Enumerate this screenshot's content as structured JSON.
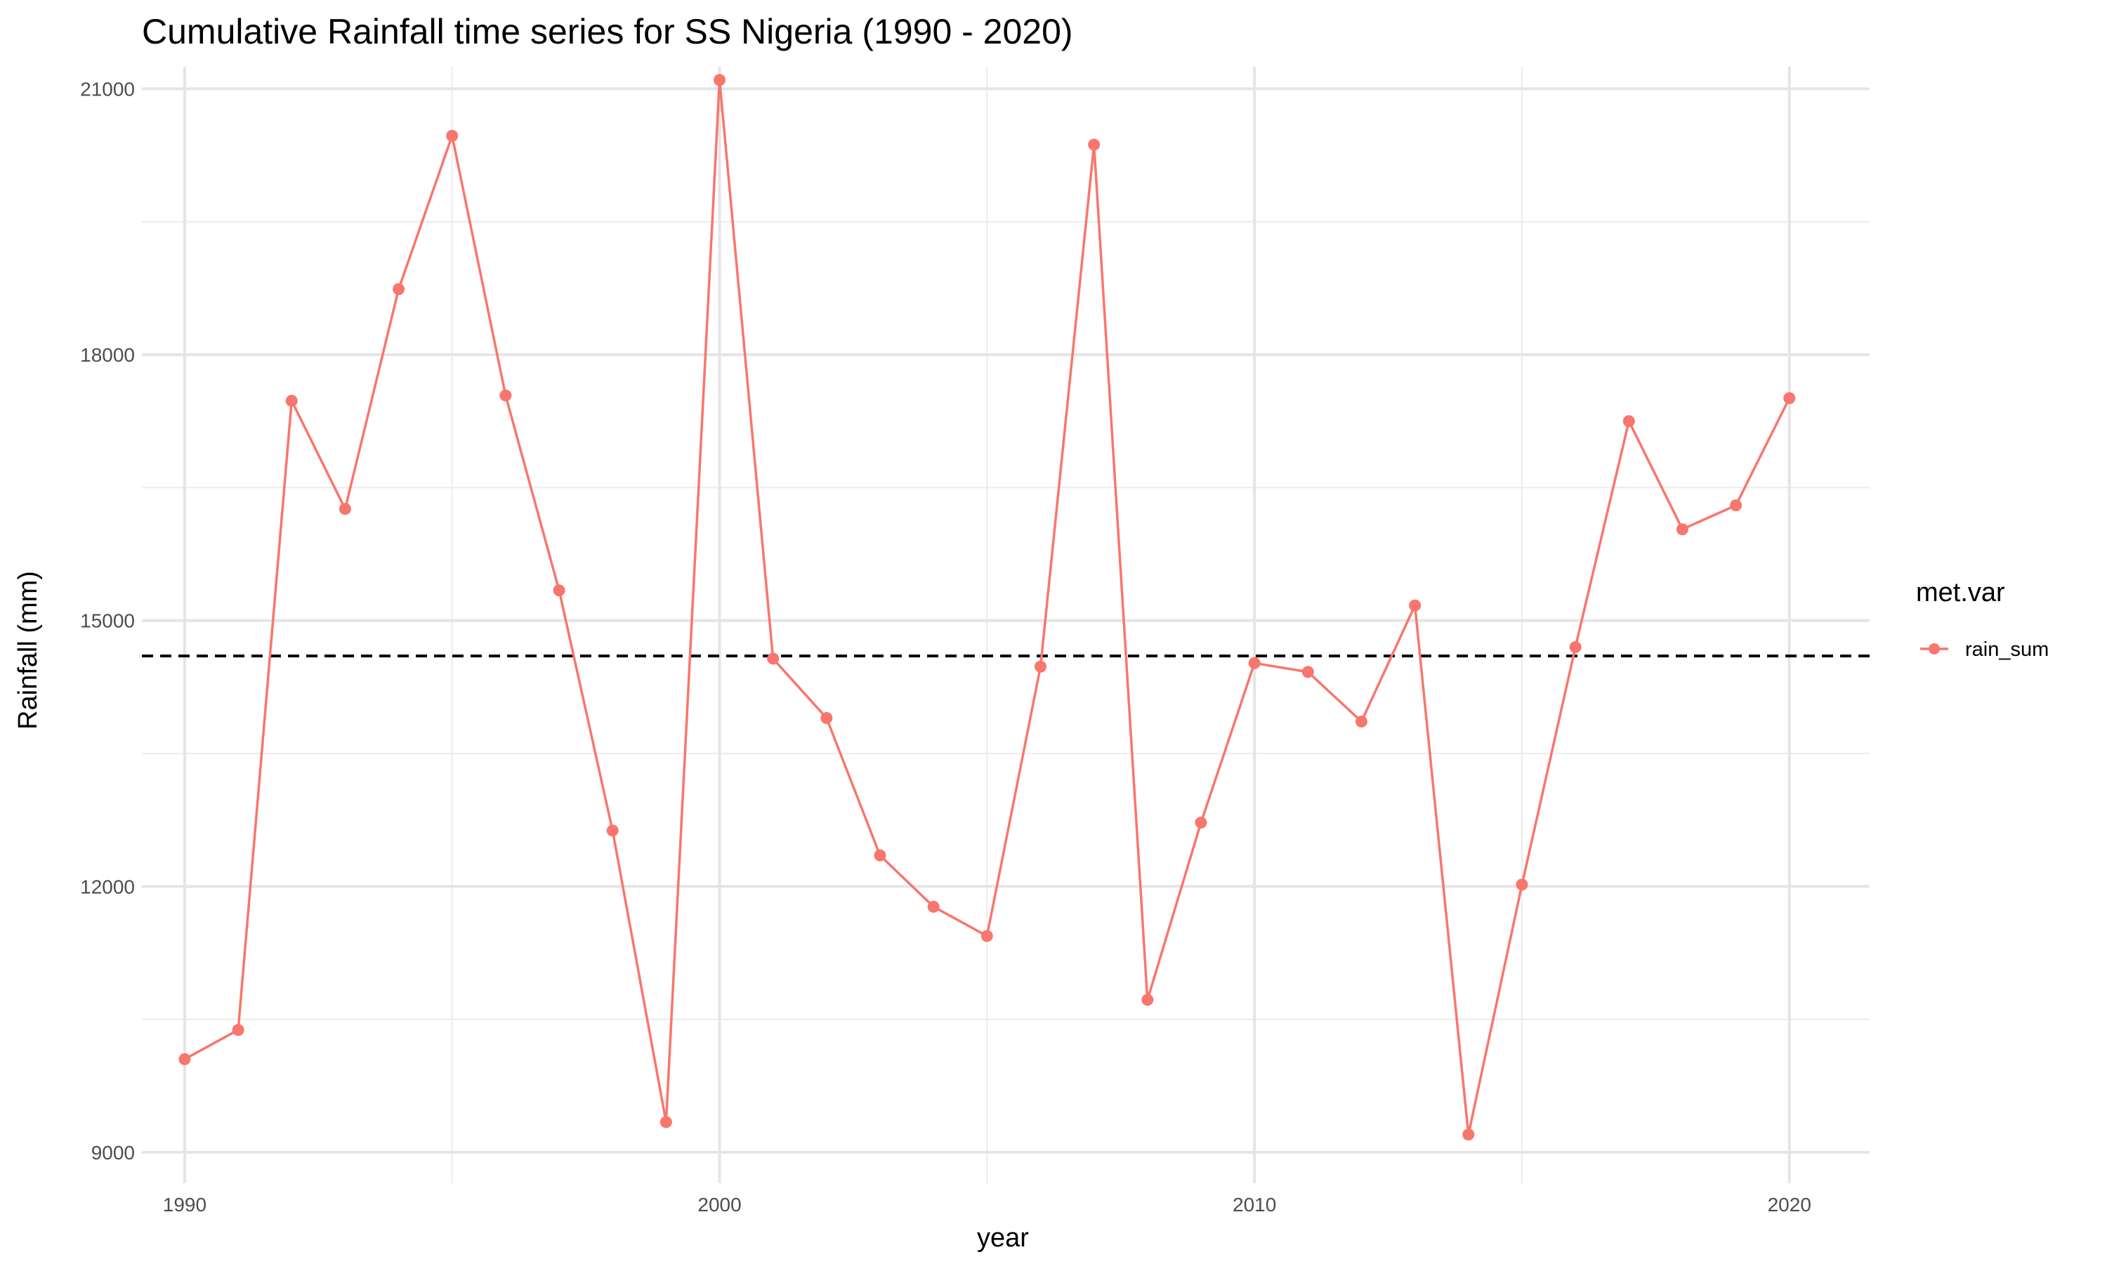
{
  "chart_data": {
    "type": "line",
    "title": "Cumulative Rainfall time series for SS Nigeria (1990 - 2020)",
    "xlabel": "year",
    "ylabel": "Rainfall (mm)",
    "xlim": [
      1989.2,
      2021.5
    ],
    "ylim": [
      8650,
      21250
    ],
    "x_major_ticks": [
      1990,
      2000,
      2010,
      2020
    ],
    "x_minor_ticks": [
      1995,
      2005,
      2015
    ],
    "y_major_ticks": [
      9000,
      12000,
      15000,
      18000,
      21000
    ],
    "y_minor_ticks": [
      10500,
      13500,
      16500,
      19500
    ],
    "grid": true,
    "reference_line": {
      "y": 14600,
      "style": "dashed",
      "color": "#000000"
    },
    "legend": {
      "title": "met.var",
      "placement": "right"
    },
    "series": [
      {
        "name": "rain_sum",
        "color": "#F8766D",
        "x": [
          1990,
          1991,
          1992,
          1993,
          1994,
          1995,
          1996,
          1997,
          1998,
          1999,
          2000,
          2001,
          2002,
          2003,
          2004,
          2005,
          2006,
          2007,
          2008,
          2009,
          2010,
          2011,
          2012,
          2013,
          2014,
          2015,
          2016,
          2017,
          2018,
          2019,
          2020
        ],
        "values": [
          10050,
          10380,
          17480,
          16260,
          18740,
          20470,
          17540,
          15340,
          12630,
          9340,
          21100,
          14570,
          13900,
          12350,
          11770,
          11440,
          14480,
          20370,
          10720,
          12720,
          14520,
          14420,
          13860,
          15170,
          9200,
          12020,
          14700,
          17250,
          16030,
          16300,
          17510
        ]
      }
    ]
  }
}
